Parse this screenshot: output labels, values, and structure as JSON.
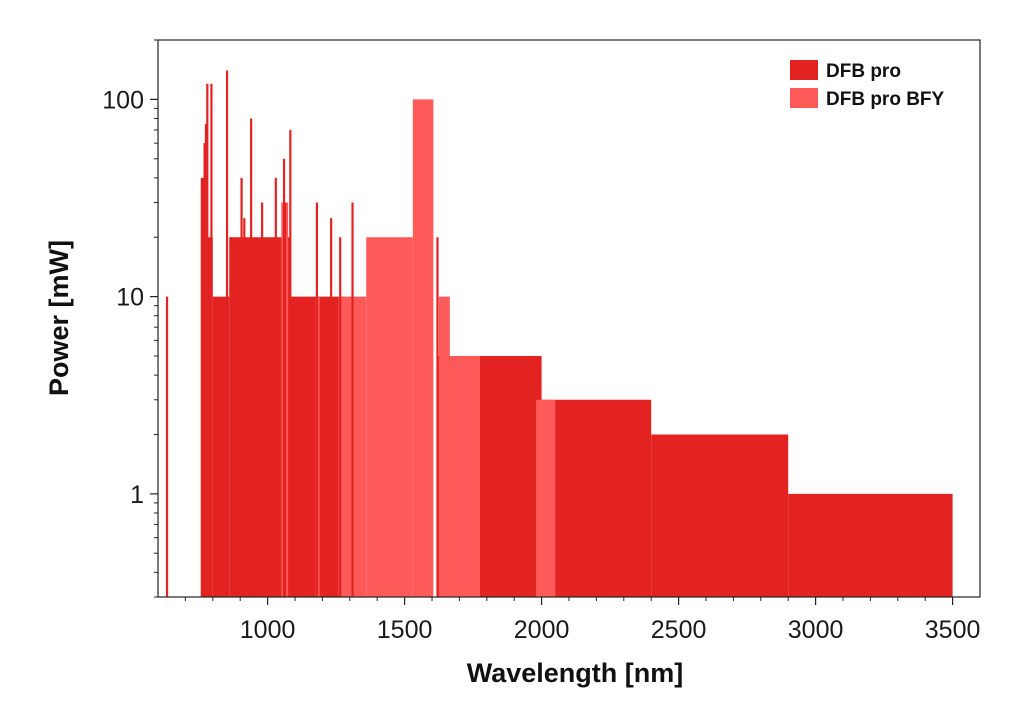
{
  "chart_data": {
    "type": "area",
    "xlabel": "Wavelength [nm]",
    "ylabel": "Power [mW]",
    "xlim": [
      600,
      3600
    ],
    "ylim": [
      0.3,
      200
    ],
    "y_scale": "log",
    "x_ticks": [
      1000,
      1500,
      2000,
      2500,
      3000,
      3500
    ],
    "x_tick_labels": [
      "1000",
      "1500",
      "2000",
      "2500",
      "3000",
      "3500"
    ],
    "y_ticks": [
      1,
      10,
      100
    ],
    "y_tick_labels": [
      "1",
      "10",
      "100"
    ],
    "grid": false,
    "legend_position": "top-right",
    "series": [
      {
        "name": "DFB pro",
        "color": "#e32322",
        "spectrum": [
          [
            760,
            780,
            40
          ],
          [
            780,
            800,
            20
          ],
          [
            800,
            860,
            10
          ],
          [
            860,
            1080,
            20
          ],
          [
            1080,
            1260,
            10
          ],
          [
            1260,
            1280,
            10
          ],
          [
            1620,
            2000,
            5
          ],
          [
            2000,
            2400,
            3
          ],
          [
            2400,
            2900,
            2
          ],
          [
            2900,
            3500,
            1
          ]
        ],
        "lines": [
          [
            633,
            10
          ],
          [
            760,
            40
          ],
          [
            770,
            60
          ],
          [
            775,
            75
          ],
          [
            780,
            120
          ],
          [
            795,
            120
          ],
          [
            852,
            140
          ],
          [
            905,
            40
          ],
          [
            915,
            25
          ],
          [
            940,
            80
          ],
          [
            980,
            30
          ],
          [
            1030,
            40
          ],
          [
            1060,
            50
          ],
          [
            1064,
            30
          ],
          [
            1083,
            70
          ],
          [
            1180,
            30
          ],
          [
            1232,
            25
          ],
          [
            1265,
            20
          ],
          [
            1310,
            30
          ],
          [
            1620,
            20
          ]
        ]
      },
      {
        "name": "DFB pro BFY",
        "color": "#ff5a5a",
        "spectrum": [
          [
            1050,
            1075,
            30
          ],
          [
            1175,
            1190,
            10
          ],
          [
            1260,
            1360,
            10
          ],
          [
            1360,
            1530,
            20
          ],
          [
            1530,
            1605,
            100
          ],
          [
            1625,
            1665,
            10
          ],
          [
            1665,
            1735,
            5
          ],
          [
            1735,
            1775,
            5
          ],
          [
            1980,
            2050,
            3
          ]
        ],
        "lines": []
      }
    ]
  }
}
